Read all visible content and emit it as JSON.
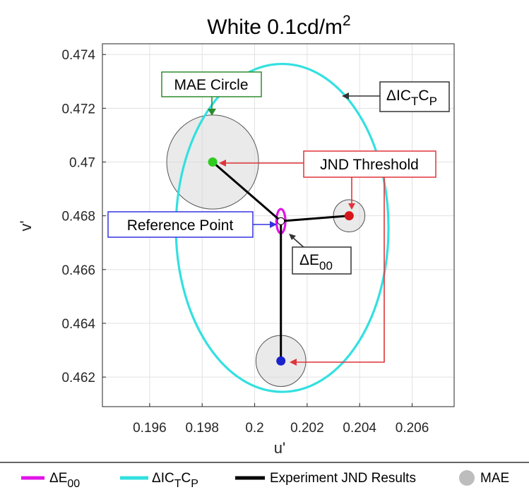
{
  "chart_data": {
    "type": "scatter",
    "title": "White 0.1cd/m",
    "title_superscript": "2",
    "xlabel": "u'",
    "ylabel": "v'",
    "xlim": [
      0.1942,
      0.2076
    ],
    "ylim": [
      0.4609,
      0.4744
    ],
    "xticks": [
      0.196,
      0.198,
      0.2,
      0.202,
      0.204,
      0.206
    ],
    "xtick_labels": [
      "0.196",
      "0.198",
      "0.2",
      "0.202",
      "0.204",
      "0.206"
    ],
    "yticks": [
      0.462,
      0.464,
      0.466,
      0.468,
      0.47,
      0.472,
      0.474
    ],
    "ytick_labels": [
      "0.462",
      "0.464",
      "0.466",
      "0.468",
      "0.47",
      "0.472",
      "0.474"
    ],
    "grid": true,
    "reference_point": {
      "x": 0.201,
      "y": 0.4678
    },
    "jnd_points": [
      {
        "x": 0.1984,
        "y": 0.47,
        "color": "#2ecc1e",
        "mae_radius": 0.00175
      },
      {
        "x": 0.2036,
        "y": 0.468,
        "color": "#d8141b",
        "mae_radius": 0.0006
      },
      {
        "x": 0.201,
        "y": 0.4626,
        "color": "#1a23cc",
        "mae_radius": 0.00095
      }
    ],
    "ellipses": [
      {
        "name": "ΔICTCP",
        "cx": 0.20105,
        "cy": 0.46755,
        "rx": 0.00405,
        "ry": 0.0061,
        "color": "#33e0e0"
      },
      {
        "name": "ΔE00",
        "cx": 0.201,
        "cy": 0.4678,
        "rx": 0.00017,
        "ry": 0.00045,
        "color": "#e014e8"
      }
    ],
    "annotations": [
      {
        "text": "MAE Circle",
        "color": "#2e8b2e"
      },
      {
        "text": "ΔIC",
        "sub": "T",
        "text2": "C",
        "sub2": "P",
        "color": "#333333"
      },
      {
        "text": "JND Threshold",
        "color": "#e0343a"
      },
      {
        "text": "Reference Point",
        "color": "#3333e0"
      },
      {
        "text": "ΔE",
        "sub": "00",
        "color": "#333333"
      }
    ],
    "legend": {
      "placement": "bottom",
      "items": [
        {
          "label": "ΔE",
          "sub": "00",
          "color": "#e014e8",
          "kind": "line"
        },
        {
          "label": "ΔIC",
          "sub": "T",
          "label2": "C",
          "sub2": "P",
          "color": "#33e0e0",
          "kind": "line"
        },
        {
          "label": "Experiment JND Results",
          "color": "#000000",
          "kind": "line"
        },
        {
          "label": "MAE",
          "color": "#bdbdbd",
          "kind": "circle"
        }
      ]
    }
  }
}
